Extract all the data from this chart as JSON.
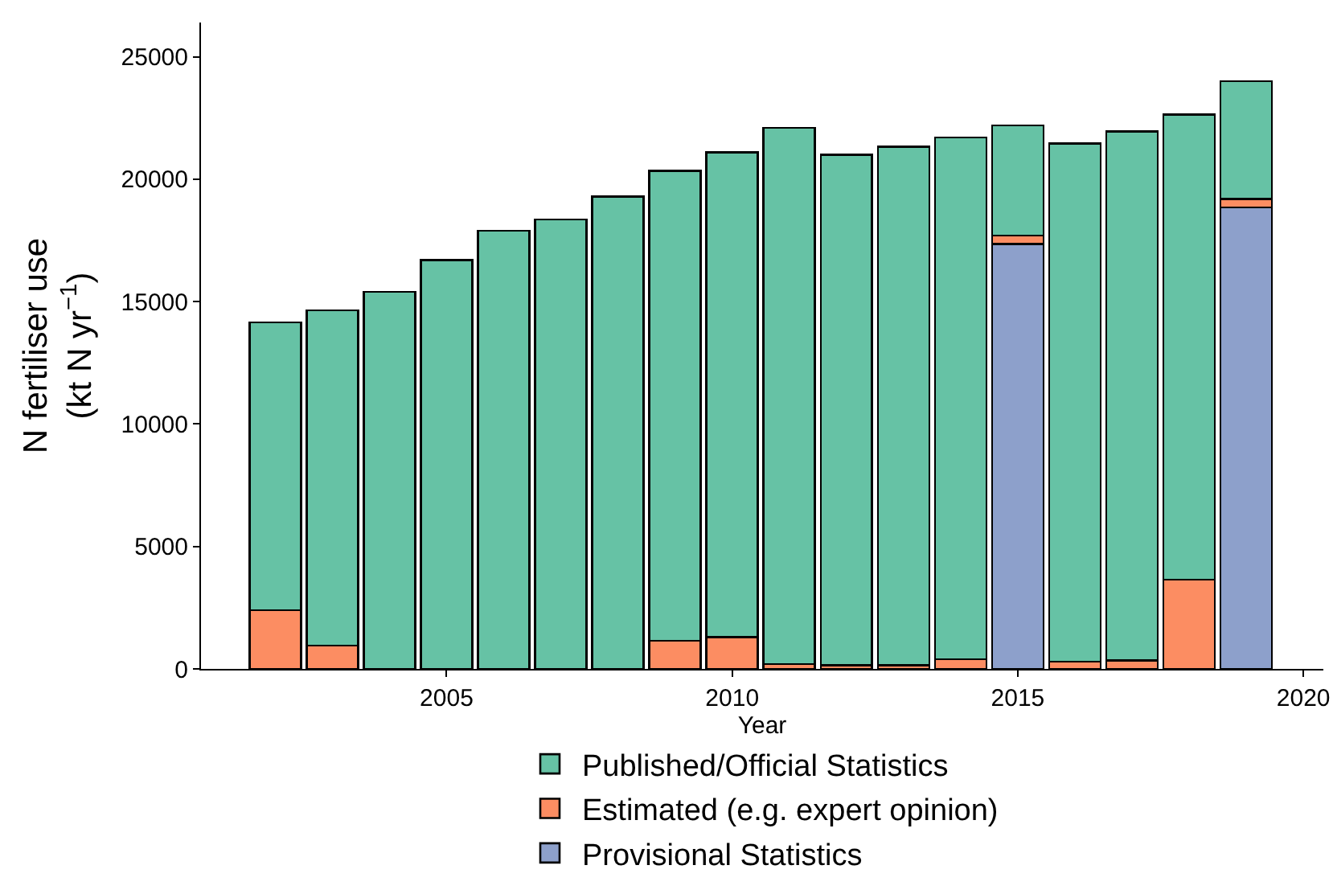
{
  "chart_data": {
    "type": "bar",
    "stacked": true,
    "xlabel": "Year",
    "ylabel": "N fertiliser use\n(kt N yr$^{−1}$)",
    "x": [
      2002,
      2003,
      2004,
      2005,
      2006,
      2007,
      2008,
      2009,
      2010,
      2011,
      2012,
      2013,
      2014,
      2015,
      2016,
      2017,
      2018,
      2019
    ],
    "series": [
      {
        "name": "Provisional Statistics",
        "color": "#8da0cb",
        "values": [
          0,
          0,
          0,
          0,
          0,
          0,
          0,
          0,
          0,
          0,
          0,
          0,
          0,
          17350,
          0,
          0,
          0,
          18850
        ]
      },
      {
        "name": "Estimated (e.g. expert opinion)",
        "color": "#fc8d62",
        "values": [
          2400,
          950,
          0,
          0,
          0,
          0,
          0,
          1150,
          1300,
          200,
          150,
          150,
          400,
          350,
          300,
          350,
          3650,
          350
        ]
      },
      {
        "name": "Published/Official Statistics",
        "color": "#66c2a5",
        "values": [
          11750,
          13700,
          15400,
          16700,
          17900,
          18350,
          19300,
          19200,
          19800,
          21900,
          20850,
          21170,
          21300,
          4500,
          21150,
          21600,
          19000,
          4800
        ]
      }
    ],
    "xlim": [
      2000.7,
      2020.35
    ],
    "xticks": [
      2005,
      2010,
      2015,
      2020
    ],
    "ylim": [
      0,
      26400
    ],
    "yticks": [
      0,
      5000,
      10000,
      15000,
      20000,
      25000
    ],
    "grid": false,
    "legend": "bottom"
  }
}
